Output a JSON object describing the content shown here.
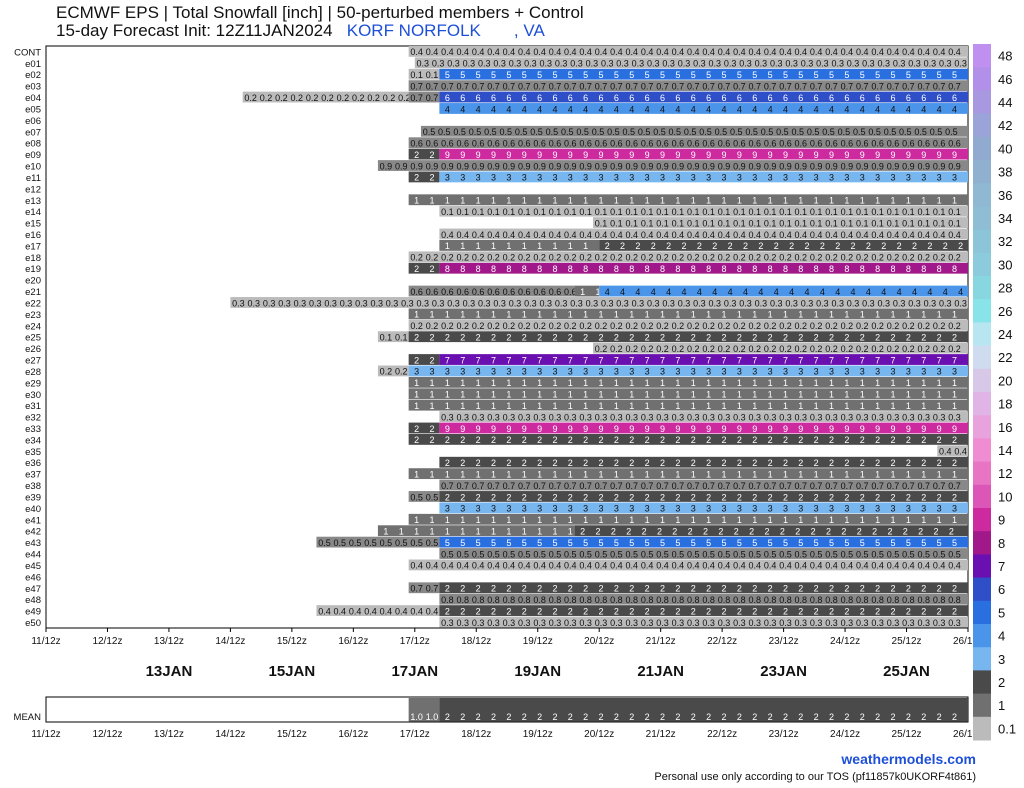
{
  "header": {
    "title_line1": "ECMWF EPS | Total Snowfall [inch] | 50-perturbed members + Control",
    "title_line2_prefix": "15-day Forecast Init: 12Z11JAN2024",
    "location": "KORF NORFOLK       , VA"
  },
  "footer": {
    "site": "weathermodels.com",
    "tos": "Personal use only according to our TOS (pf11857k0UKORF4t861)"
  },
  "colors": {
    "grid_bg": "#ffffff",
    "frame": "#000000"
  },
  "chart_data": {
    "type": "heatmap",
    "title": "ECMWF EPS | Total Snowfall [inch] | 50-perturbed members + Control",
    "time_ticks": [
      "11/12z",
      "12/12z",
      "13/12z",
      "14/12z",
      "15/12z",
      "16/12z",
      "17/12z",
      "18/12z",
      "19/12z",
      "20/12z",
      "21/12z",
      "22/12z",
      "23/12z",
      "24/12z",
      "25/12z",
      "26/12z"
    ],
    "day_labels": [
      "13JAN",
      "15JAN",
      "17JAN",
      "19JAN",
      "21JAN",
      "23JAN",
      "25JAN"
    ],
    "colorbar": {
      "ticks": [
        "48",
        "46",
        "44",
        "42",
        "40",
        "38",
        "36",
        "34",
        "32",
        "30",
        "28",
        "26",
        "24",
        "22",
        "20",
        "18",
        "16",
        "14",
        "12",
        "10",
        "9",
        "8",
        "7",
        "6",
        "5",
        "4",
        "3",
        "2",
        "1",
        "0.1"
      ],
      "colors": [
        "#c090f0",
        "#b290ea",
        "#a898e0",
        "#9aa4d8",
        "#90aad0",
        "#8fb1cf",
        "#8fb8d2",
        "#8ebdd4",
        "#8cc4d8",
        "#8ccbdc",
        "#88d6e0",
        "#88e4e8",
        "#b8e6f0",
        "#cfdcf0",
        "#d8c8e8",
        "#e0b4e4",
        "#e8a2dc",
        "#ef8cd2",
        "#e874c4",
        "#dc56b8",
        "#cc2a9e",
        "#a0188a",
        "#6a10b0",
        "#2f4fc8",
        "#2a6fe0",
        "#4a94ea",
        "#78b6f0",
        "#4a4a4a",
        "#707070",
        "#bbbbbb"
      ]
    },
    "members": [
      {
        "name": "CONT",
        "cells": [
          {
            "s": 16.9,
            "e": 26.6,
            "v": "0.4"
          }
        ]
      },
      {
        "name": "e01",
        "cells": [
          {
            "s": 17.0,
            "e": 26.6,
            "v": "0.3"
          }
        ]
      },
      {
        "name": "e02",
        "cells": [
          {
            "s": 16.9,
            "e": 17.4,
            "v": "0.1"
          },
          {
            "s": 17.4,
            "e": 26.6,
            "v": "5"
          }
        ]
      },
      {
        "name": "e03",
        "cells": [
          {
            "s": 16.9,
            "e": 26.6,
            "v": "0.7"
          }
        ]
      },
      {
        "name": "e04",
        "cells": [
          {
            "s": 14.2,
            "e": 16.9,
            "v": "0.2"
          },
          {
            "s": 16.9,
            "e": 17.4,
            "v": "0.7"
          },
          {
            "s": 17.4,
            "e": 26.6,
            "v": "6"
          }
        ]
      },
      {
        "name": "e05",
        "cells": [
          {
            "s": 17.4,
            "e": 26.6,
            "v": "4"
          }
        ]
      },
      {
        "name": "e06",
        "cells": []
      },
      {
        "name": "e07",
        "cells": [
          {
            "s": 17.1,
            "e": 26.6,
            "v": "0.5"
          }
        ]
      },
      {
        "name": "e08",
        "cells": [
          {
            "s": 16.9,
            "e": 26.6,
            "v": "0.6"
          }
        ]
      },
      {
        "name": "e09",
        "cells": [
          {
            "s": 16.9,
            "e": 17.4,
            "v": "2"
          },
          {
            "s": 17.4,
            "e": 26.6,
            "v": "9"
          }
        ]
      },
      {
        "name": "e10",
        "cells": [
          {
            "s": 16.4,
            "e": 26.6,
            "v": "0.9"
          }
        ]
      },
      {
        "name": "e11",
        "cells": [
          {
            "s": 16.9,
            "e": 17.4,
            "v": "2"
          },
          {
            "s": 17.4,
            "e": 26.6,
            "v": "3"
          }
        ]
      },
      {
        "name": "e12",
        "cells": []
      },
      {
        "name": "e13",
        "cells": [
          {
            "s": 16.9,
            "e": 26.6,
            "v": "1"
          }
        ]
      },
      {
        "name": "e14",
        "cells": [
          {
            "s": 17.4,
            "e": 26.6,
            "v": "0.1"
          }
        ]
      },
      {
        "name": "e15",
        "cells": [
          {
            "s": 19.9,
            "e": 26.6,
            "v": "0.1"
          }
        ]
      },
      {
        "name": "e16",
        "cells": [
          {
            "s": 17.4,
            "e": 26.6,
            "v": "0.4"
          }
        ]
      },
      {
        "name": "e17",
        "cells": [
          {
            "s": 17.4,
            "e": 20.0,
            "v": "1"
          },
          {
            "s": 20.0,
            "e": 26.6,
            "v": "2"
          }
        ]
      },
      {
        "name": "e18",
        "cells": [
          {
            "s": 16.9,
            "e": 26.6,
            "v": "0.2"
          }
        ]
      },
      {
        "name": "e19",
        "cells": [
          {
            "s": 16.9,
            "e": 17.4,
            "v": "2"
          },
          {
            "s": 17.4,
            "e": 26.6,
            "v": "8"
          }
        ]
      },
      {
        "name": "e20",
        "cells": []
      },
      {
        "name": "e21",
        "cells": [
          {
            "s": 16.9,
            "e": 19.6,
            "v": "0.6"
          },
          {
            "s": 19.6,
            "e": 20.0,
            "v": "1"
          },
          {
            "s": 20.0,
            "e": 26.6,
            "v": "4"
          }
        ]
      },
      {
        "name": "e22",
        "cells": [
          {
            "s": 14.0,
            "e": 26.6,
            "v": "0.3"
          }
        ]
      },
      {
        "name": "e23",
        "cells": [
          {
            "s": 16.9,
            "e": 26.6,
            "v": "1"
          }
        ]
      },
      {
        "name": "e24",
        "cells": [
          {
            "s": 16.9,
            "e": 26.6,
            "v": "0.2"
          }
        ]
      },
      {
        "name": "e25",
        "cells": [
          {
            "s": 16.4,
            "e": 16.9,
            "v": "0.1"
          },
          {
            "s": 16.9,
            "e": 26.6,
            "v": "2"
          }
        ]
      },
      {
        "name": "e26",
        "cells": [
          {
            "s": 19.9,
            "e": 26.6,
            "v": "0.2"
          }
        ]
      },
      {
        "name": "e27",
        "cells": [
          {
            "s": 16.9,
            "e": 17.4,
            "v": "2"
          },
          {
            "s": 17.4,
            "e": 26.6,
            "v": "7"
          }
        ]
      },
      {
        "name": "e28",
        "cells": [
          {
            "s": 16.4,
            "e": 16.9,
            "v": "0.2"
          },
          {
            "s": 16.9,
            "e": 26.6,
            "v": "3"
          }
        ]
      },
      {
        "name": "e29",
        "cells": [
          {
            "s": 16.9,
            "e": 26.6,
            "v": "1"
          }
        ]
      },
      {
        "name": "e30",
        "cells": [
          {
            "s": 16.9,
            "e": 26.6,
            "v": "1"
          }
        ]
      },
      {
        "name": "e31",
        "cells": [
          {
            "s": 16.9,
            "e": 26.6,
            "v": "1"
          }
        ]
      },
      {
        "name": "e32",
        "cells": [
          {
            "s": 17.4,
            "e": 26.6,
            "v": "0.3"
          }
        ]
      },
      {
        "name": "e33",
        "cells": [
          {
            "s": 16.9,
            "e": 17.4,
            "v": "2"
          },
          {
            "s": 17.4,
            "e": 26.6,
            "v": "9"
          }
        ]
      },
      {
        "name": "e34",
        "cells": [
          {
            "s": 16.9,
            "e": 26.6,
            "v": "2"
          }
        ]
      },
      {
        "name": "e35",
        "cells": [
          {
            "s": 25.5,
            "e": 26.6,
            "v": "0.4"
          }
        ]
      },
      {
        "name": "e36",
        "cells": [
          {
            "s": 17.4,
            "e": 26.6,
            "v": "2"
          }
        ]
      },
      {
        "name": "e37",
        "cells": [
          {
            "s": 16.9,
            "e": 26.6,
            "v": "1"
          }
        ]
      },
      {
        "name": "e38",
        "cells": [
          {
            "s": 17.4,
            "e": 26.6,
            "v": "0.7"
          }
        ]
      },
      {
        "name": "e39",
        "cells": [
          {
            "s": 16.9,
            "e": 17.4,
            "v": "0.5"
          },
          {
            "s": 17.4,
            "e": 26.6,
            "v": "2"
          }
        ]
      },
      {
        "name": "e40",
        "cells": [
          {
            "s": 17.4,
            "e": 26.6,
            "v": "3"
          }
        ]
      },
      {
        "name": "e41",
        "cells": [
          {
            "s": 16.9,
            "e": 26.6,
            "v": "1"
          }
        ]
      },
      {
        "name": "e42",
        "cells": [
          {
            "s": 16.4,
            "e": 19.6,
            "v": "1"
          },
          {
            "s": 19.6,
            "e": 26.6,
            "v": "2"
          }
        ]
      },
      {
        "name": "e43",
        "cells": [
          {
            "s": 15.4,
            "e": 17.4,
            "v": "0.5"
          },
          {
            "s": 17.4,
            "e": 26.6,
            "v": "5"
          }
        ]
      },
      {
        "name": "e44",
        "cells": [
          {
            "s": 17.4,
            "e": 26.6,
            "v": "0.5"
          }
        ]
      },
      {
        "name": "e45",
        "cells": [
          {
            "s": 16.9,
            "e": 26.6,
            "v": "0.4"
          }
        ]
      },
      {
        "name": "e46",
        "cells": []
      },
      {
        "name": "e47",
        "cells": [
          {
            "s": 16.9,
            "e": 17.4,
            "v": "0.7"
          },
          {
            "s": 17.4,
            "e": 26.6,
            "v": "2"
          }
        ]
      },
      {
        "name": "e48",
        "cells": [
          {
            "s": 17.4,
            "e": 26.6,
            "v": "0.8"
          }
        ]
      },
      {
        "name": "e49",
        "cells": [
          {
            "s": 15.4,
            "e": 17.4,
            "v": "0.4"
          },
          {
            "s": 17.4,
            "e": 26.6,
            "v": "2"
          }
        ]
      },
      {
        "name": "e50",
        "cells": [
          {
            "s": 17.4,
            "e": 26.6,
            "v": "0.3"
          }
        ]
      }
    ],
    "mean": {
      "name": "MEAN",
      "cells": [
        {
          "s": 16.9,
          "e": 17.4,
          "v": "1.0"
        },
        {
          "s": 17.4,
          "e": 26.6,
          "v": "2"
        }
      ]
    }
  }
}
